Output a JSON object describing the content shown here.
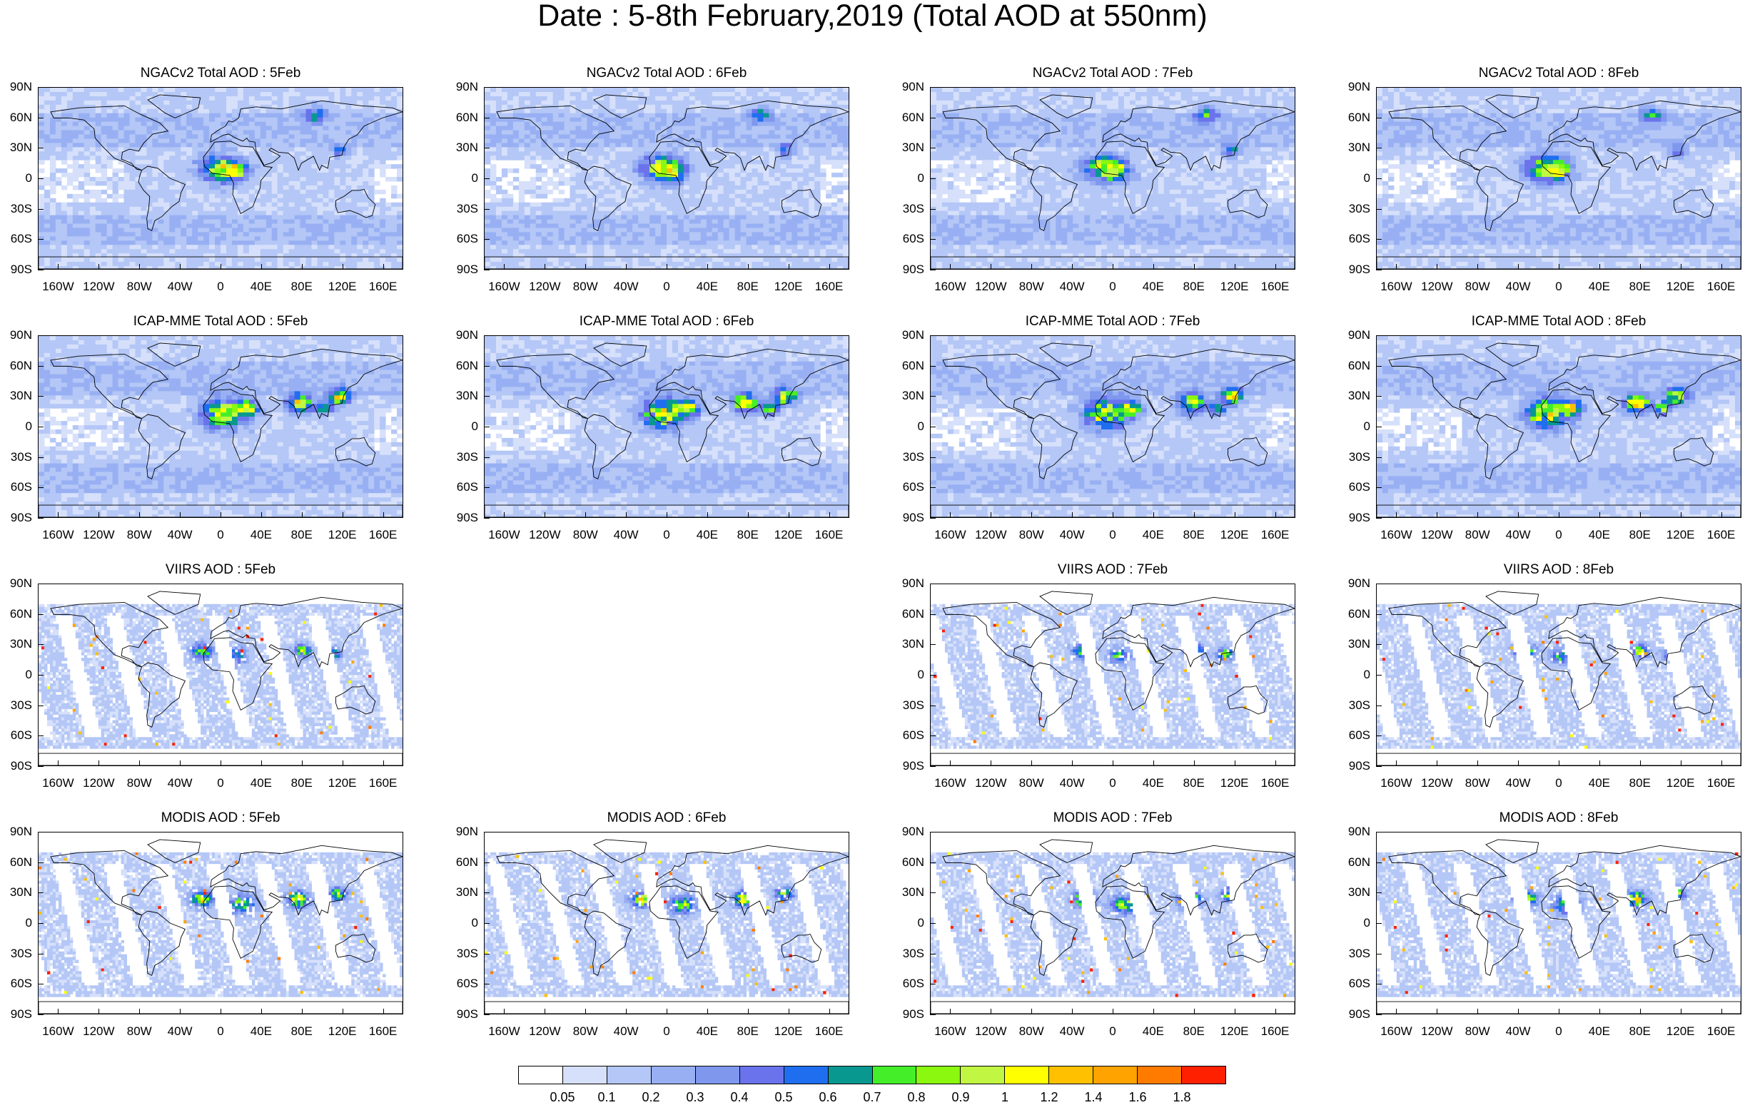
{
  "title": "Date : 5-8th February,2019 (Total AOD at 550nm)",
  "lat_labels": [
    "90N",
    "60N",
    "30N",
    "0",
    "30S",
    "60S",
    "90S"
  ],
  "lon_labels": [
    "160W",
    "120W",
    "80W",
    "40W",
    "0",
    "40E",
    "80E",
    "120E",
    "160E"
  ],
  "colorbar": {
    "labels": [
      "0.05",
      "0.1",
      "0.2",
      "0.3",
      "0.4",
      "0.5",
      "0.6",
      "0.7",
      "0.8",
      "0.9",
      "1",
      "1.2",
      "1.4",
      "1.6",
      "1.8"
    ],
    "colors": [
      "#ffffff",
      "#d6e0fb",
      "#b4c7f6",
      "#98b0f3",
      "#7f98ee",
      "#6a73ec",
      "#1f6ef0",
      "#089890",
      "#44ef29",
      "#8af80f",
      "#c1f742",
      "#ffff00",
      "#ffc000",
      "#ffa300",
      "#ff7b00",
      "#ff2000"
    ]
  },
  "chart_data": [
    {
      "type": "heatmap",
      "title": "NGACv2 Total AOD : 5Feb",
      "product": "NGACv2",
      "day": "5Feb"
    },
    {
      "type": "heatmap",
      "title": "NGACv2 Total AOD : 6Feb",
      "product": "NGACv2",
      "day": "6Feb"
    },
    {
      "type": "heatmap",
      "title": "NGACv2 Total AOD : 7Feb",
      "product": "NGACv2",
      "day": "7Feb"
    },
    {
      "type": "heatmap",
      "title": "NGACv2 Total AOD : 8Feb",
      "product": "NGACv2",
      "day": "8Feb"
    },
    {
      "type": "heatmap",
      "title": "ICAP-MME Total AOD : 5Feb",
      "product": "ICAP-MME",
      "day": "5Feb"
    },
    {
      "type": "heatmap",
      "title": "ICAP-MME Total AOD : 6Feb",
      "product": "ICAP-MME",
      "day": "6Feb"
    },
    {
      "type": "heatmap",
      "title": "ICAP-MME Total AOD : 7Feb",
      "product": "ICAP-MME",
      "day": "7Feb"
    },
    {
      "type": "heatmap",
      "title": "ICAP-MME Total AOD : 8Feb",
      "product": "ICAP-MME",
      "day": "8Feb"
    },
    {
      "type": "heatmap",
      "title": "VIIRS AOD : 5Feb",
      "product": "VIIRS",
      "day": "5Feb"
    },
    null,
    {
      "type": "heatmap",
      "title": "VIIRS AOD : 7Feb",
      "product": "VIIRS",
      "day": "7Feb"
    },
    {
      "type": "heatmap",
      "title": "VIIRS AOD : 8Feb",
      "product": "VIIRS",
      "day": "8Feb"
    },
    {
      "type": "heatmap",
      "title": "MODIS AOD : 5Feb",
      "product": "MODIS",
      "day": "5Feb"
    },
    {
      "type": "heatmap",
      "title": "MODIS AOD : 6Feb",
      "product": "MODIS",
      "day": "6Feb"
    },
    {
      "type": "heatmap",
      "title": "MODIS AOD : 7Feb",
      "product": "MODIS",
      "day": "7Feb"
    },
    {
      "type": "heatmap",
      "title": "MODIS AOD : 8Feb",
      "product": "MODIS",
      "day": "8Feb"
    }
  ]
}
